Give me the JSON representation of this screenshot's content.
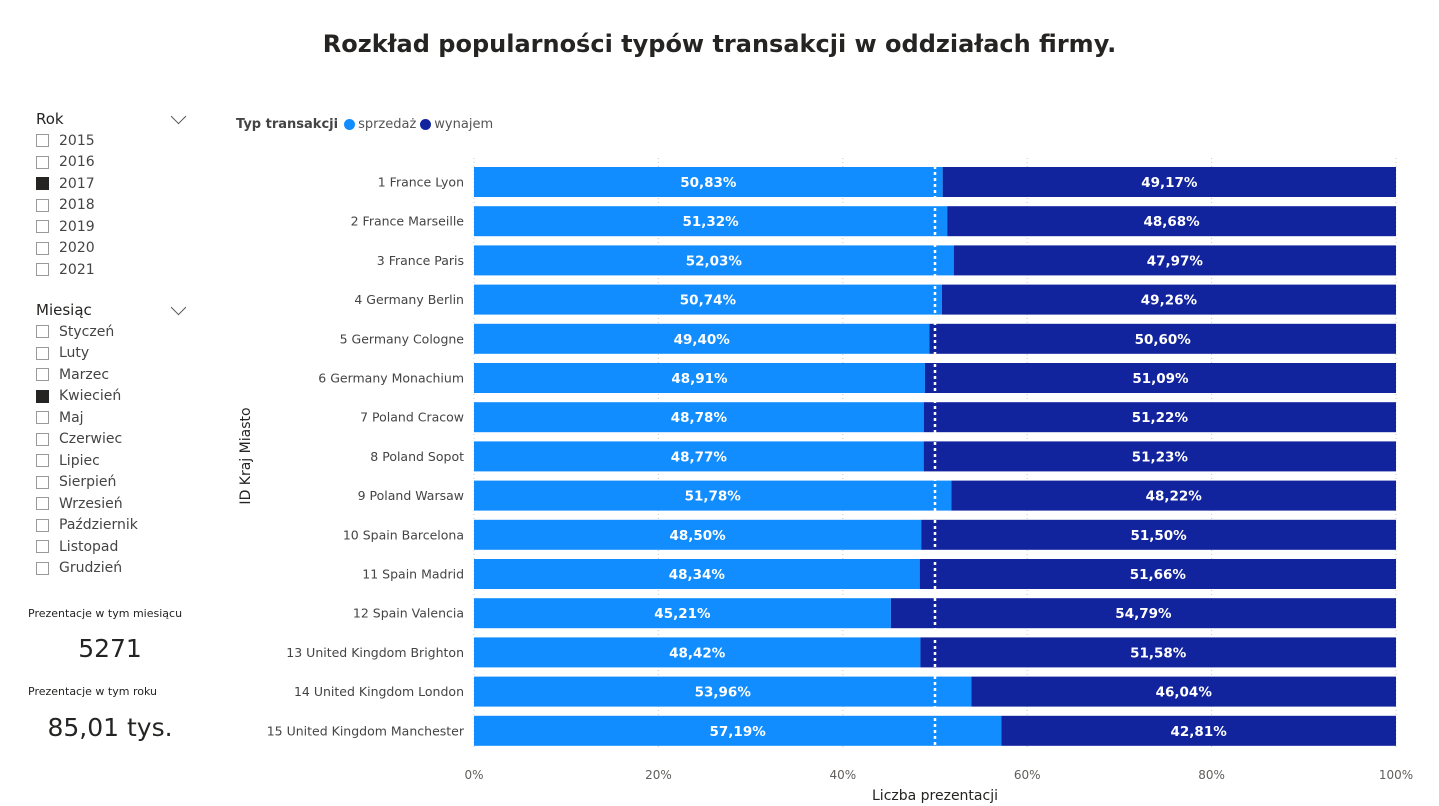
{
  "title": "Rozkład popularności typów transakcji w oddziałach firmy.",
  "slicer_year": {
    "title": "Rok",
    "items": [
      {
        "label": "2015",
        "checked": false
      },
      {
        "label": "2016",
        "checked": false
      },
      {
        "label": "2017",
        "checked": true
      },
      {
        "label": "2018",
        "checked": false
      },
      {
        "label": "2019",
        "checked": false
      },
      {
        "label": "2020",
        "checked": false
      },
      {
        "label": "2021",
        "checked": false
      }
    ]
  },
  "slicer_month": {
    "title": "Miesiąc",
    "items": [
      {
        "label": "Styczeń",
        "checked": false
      },
      {
        "label": "Luty",
        "checked": false
      },
      {
        "label": "Marzec",
        "checked": false
      },
      {
        "label": "Kwiecień",
        "checked": true
      },
      {
        "label": "Maj",
        "checked": false
      },
      {
        "label": "Czerwiec",
        "checked": false
      },
      {
        "label": "Lipiec",
        "checked": false
      },
      {
        "label": "Sierpień",
        "checked": false
      },
      {
        "label": "Wrzesień",
        "checked": false
      },
      {
        "label": "Październik",
        "checked": false
      },
      {
        "label": "Listopad",
        "checked": false
      },
      {
        "label": "Grudzień",
        "checked": false
      }
    ]
  },
  "kpi_month": {
    "label": "Prezentacje w tym miesiącu",
    "value": "5271"
  },
  "kpi_year": {
    "label": "Prezentacje w tym roku",
    "value": "85,01 tys."
  },
  "chart_data": {
    "type": "bar",
    "orientation": "horizontal",
    "stacked": "100%",
    "legend_title": "Typ transakcji",
    "legend_position": "top-left",
    "xlabel": "Liczba prezentacji",
    "ylabel": "ID Kraj Miasto",
    "xlim": [
      0,
      100
    ],
    "x_ticks": [
      "0%",
      "20%",
      "40%",
      "60%",
      "80%",
      "100%"
    ],
    "reference_line": 50,
    "grid": true,
    "colors": {
      "sprzedaz": "#118DFF",
      "wynajem": "#12239E"
    },
    "categories": [
      "1 France Lyon",
      "2 France Marseille",
      "3 France Paris",
      "4 Germany Berlin",
      "5 Germany Cologne",
      "6 Germany Monachium",
      "7 Poland Cracow",
      "8 Poland Sopot",
      "9 Poland Warsaw",
      "10 Spain Barcelona",
      "11 Spain Madrid",
      "12 Spain Valencia",
      "13 United Kingdom Brighton",
      "14 United Kingdom London",
      "15 United Kingdom Manchester"
    ],
    "series": [
      {
        "name": "sprzedaż",
        "color": "#118DFF",
        "values": [
          50.83,
          51.32,
          52.03,
          50.74,
          49.4,
          48.91,
          48.78,
          48.77,
          51.78,
          48.5,
          48.34,
          45.21,
          48.42,
          53.96,
          57.19
        ],
        "labels": [
          "50,83%",
          "51,32%",
          "52,03%",
          "50,74%",
          "49,40%",
          "48,91%",
          "48,78%",
          "48,77%",
          "51,78%",
          "48,50%",
          "48,34%",
          "45,21%",
          "48,42%",
          "53,96%",
          "57,19%"
        ]
      },
      {
        "name": "wynajem",
        "color": "#12239E",
        "values": [
          49.17,
          48.68,
          47.97,
          49.26,
          50.6,
          51.09,
          51.22,
          51.23,
          48.22,
          51.5,
          51.66,
          54.79,
          51.58,
          46.04,
          42.81
        ],
        "labels": [
          "49,17%",
          "48,68%",
          "47,97%",
          "49,26%",
          "50,60%",
          "51,09%",
          "51,22%",
          "51,23%",
          "48,22%",
          "51,50%",
          "51,66%",
          "54,79%",
          "51,58%",
          "46,04%",
          "42,81%"
        ]
      }
    ]
  }
}
